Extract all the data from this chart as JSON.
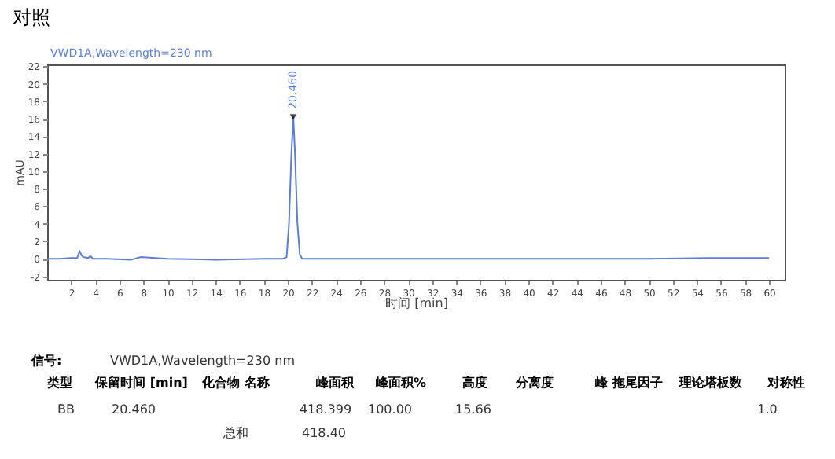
{
  "chart_data": {
    "type": "line",
    "title": "对照",
    "xlabel": "时间 [min]",
    "ylabel": "mAU",
    "xlim": [
      0,
      61.3
    ],
    "ylim": [
      -2.4,
      22.2
    ],
    "xticks": [
      2,
      4,
      6,
      8,
      10,
      12,
      14,
      16,
      18,
      20,
      22,
      24,
      26,
      28,
      30,
      32,
      34,
      36,
      38,
      40,
      42,
      44,
      46,
      48,
      50,
      52,
      54,
      56,
      58,
      60
    ],
    "yticks": [
      -2,
      0,
      2,
      4,
      6,
      8,
      10,
      12,
      14,
      16,
      18,
      20,
      22
    ],
    "grid": false,
    "marker": "none",
    "line_style": "solid",
    "series": [
      {
        "color": "#5b7fd6",
        "x": [
          0,
          1,
          2,
          2.5,
          2.7,
          2.85,
          3.0,
          3.4,
          3.6,
          3.8,
          5,
          7,
          7.8,
          9,
          10,
          14,
          18,
          19.6,
          19.9,
          20.1,
          20.3,
          20.46,
          20.6,
          20.8,
          21.0,
          21.2,
          25,
          40,
          50,
          55,
          60
        ],
        "values": [
          0,
          0,
          0.1,
          0.1,
          0.9,
          0.4,
          0.2,
          0.1,
          0.3,
          0,
          0,
          -0.1,
          0.2,
          0.1,
          0,
          -0.1,
          0,
          0,
          0.2,
          4,
          12,
          16.2,
          12,
          4,
          0.5,
          0,
          0,
          0,
          0,
          0.1,
          0.1
        ]
      }
    ],
    "annotations": [
      "VWD1A,Wavelength=230 nm",
      "信号:",
      "VWD1A,Wavelength=230 nm",
      "类型",
      "保留时间 [min]",
      "化合物 名称",
      "峰面积",
      "峰面积%",
      "高度",
      "分离度",
      "峰 拖尾因子",
      "理论塔板数",
      "对称性",
      "BB",
      "20.460",
      "418.399",
      "100.00",
      "15.66",
      "1.0",
      "总和",
      "418.40",
      {
        "text": "20.460",
        "x": 20.46,
        "y": 16.2
      }
    ]
  }
}
